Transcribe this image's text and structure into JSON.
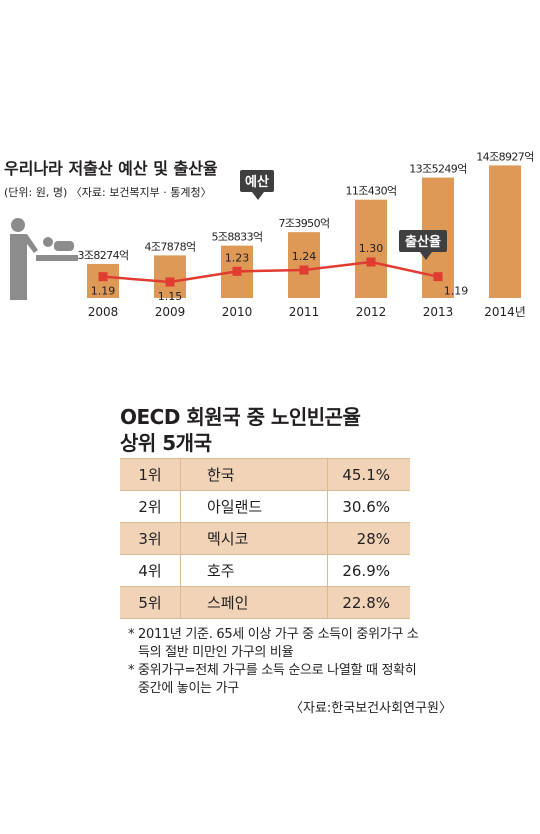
{
  "chart_data": {
    "type": "bar+line",
    "title": "우리나라 저출산 예산 및 출산율",
    "subtitle": "(단위: 원, 명) 〈자료: 보건복지부 · 통계청〉",
    "categories": [
      "2008",
      "2009",
      "2010",
      "2011",
      "2012",
      "2013",
      "2014년"
    ],
    "bar_series": {
      "name": "예산",
      "values_won_trillion": [
        3.8274,
        4.7878,
        5.8833,
        7.395,
        11.043,
        13.5249,
        14.8927
      ],
      "labels": [
        "3조8274억",
        "4조7878억",
        "5조8833억",
        "7조3950억",
        "11조430억",
        "13조5249억",
        "14조8927억"
      ]
    },
    "line_series": {
      "name": "출산율",
      "values": [
        1.19,
        1.15,
        1.23,
        1.24,
        1.3,
        1.19,
        null
      ],
      "labels": [
        "1.19",
        "1.15",
        "1.23",
        "1.24",
        "1.30",
        "1.19",
        ""
      ]
    },
    "colors": {
      "bar": "#dd9955",
      "line": "#e03c31",
      "label_box": "#3f3f3f",
      "icon": "#8c8c8c"
    }
  },
  "table": {
    "title_line1": "OECD 회원국 중 노인빈곤율",
    "title_line2": "상위 5개국",
    "rows": [
      {
        "rank": "1위",
        "country": "한국",
        "rate": "45.1%"
      },
      {
        "rank": "2위",
        "country": "아일랜드",
        "rate": "30.6%"
      },
      {
        "rank": "3위",
        "country": "멕시코",
        "rate": "28%"
      },
      {
        "rank": "4위",
        "country": "호주",
        "rate": "26.9%"
      },
      {
        "rank": "5위",
        "country": "스페인",
        "rate": "22.8%"
      }
    ]
  },
  "notes": {
    "marker": "*",
    "note1": "2011년 기준. 65세 이상 가구 중 소득이 중위가구 소득의 절반 미만인 가구의 비율",
    "note2": "중위가구=전체 가구를 소득 순으로 나열할 때 정확히 중간에 놓이는 가구",
    "source": "〈자료:한국보건사회연구원〉"
  }
}
